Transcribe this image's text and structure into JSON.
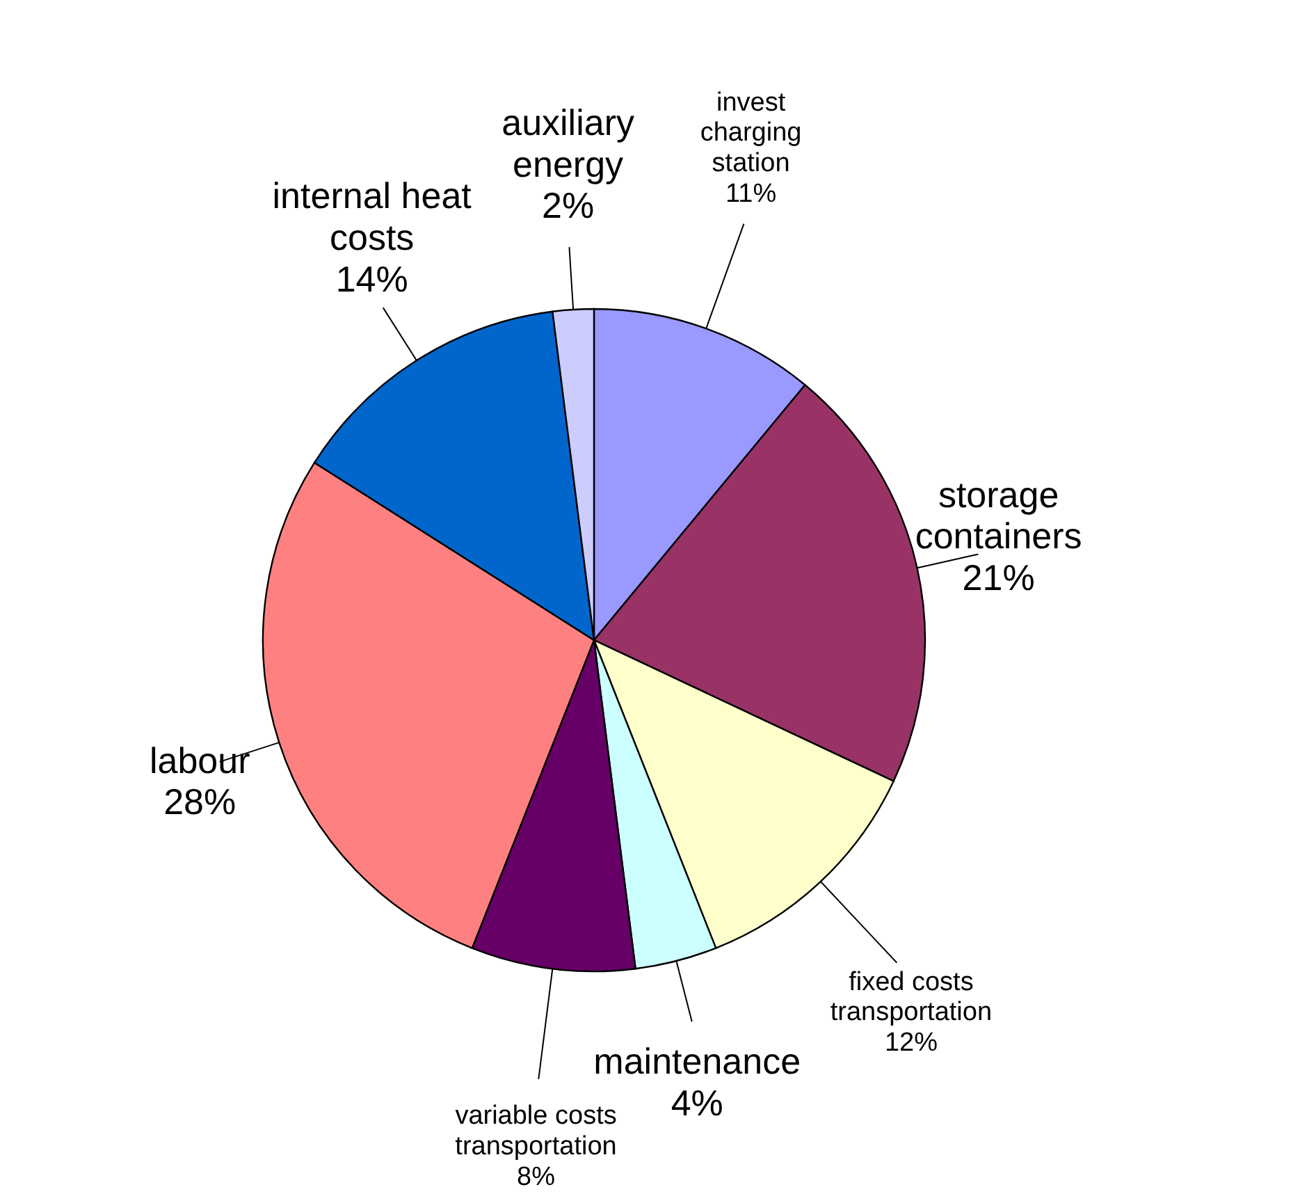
{
  "chart_data": {
    "type": "pie",
    "categories": [
      "invest charging station",
      "storage containers",
      "fixed costs transportation",
      "maintenance",
      "variable costs transportation",
      "labour",
      "internal heat costs",
      "auxiliary energy"
    ],
    "values": [
      11,
      21,
      12,
      4,
      8,
      28,
      14,
      2
    ],
    "value_labels": [
      "11%",
      "21%",
      "12%",
      "4%",
      "8%",
      "28%",
      "14%",
      "2%"
    ],
    "colors": [
      "#9999ff",
      "#993366",
      "#ffffcc",
      "#ccffff",
      "#660066",
      "#ff8080",
      "#0066cc",
      "#ccccff"
    ]
  }
}
